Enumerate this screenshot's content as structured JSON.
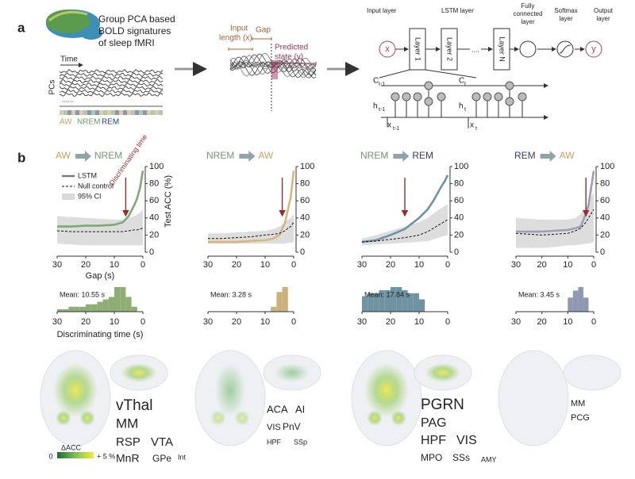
{
  "panel_a": {
    "label": "a",
    "title_lines": [
      "Group PCA based",
      "BOLD signatures",
      "of sleep fMRI"
    ],
    "time_label": "Time",
    "pcs_label": "PCs",
    "dots": "......",
    "states": [
      {
        "name": "AW",
        "color": "#c9a060"
      },
      {
        "name": "NREM",
        "color": "#6f9a6a"
      },
      {
        "name": "REM",
        "color": "#2f3f70"
      }
    ],
    "input_length": [
      "Input",
      "length (x)"
    ],
    "gap": "Gap",
    "predicted": [
      "Predicted",
      "state (y)"
    ],
    "layer_headers": {
      "input": "Input layer",
      "lstm": "LSTM layer",
      "fc": [
        "Fully",
        "connected",
        "layer"
      ],
      "softmax": [
        "Softmax",
        "layer"
      ],
      "output": [
        "Output",
        "layer"
      ]
    },
    "input_node": "x",
    "output_node": "y",
    "layers": [
      "Layer 1",
      "Layer 2",
      "Layer N"
    ],
    "ellipsis": "....",
    "cell_labels": [
      {
        "main": "C",
        "sub": "t-1"
      },
      {
        "main": "C",
        "sub": "t"
      },
      {
        "main": "h",
        "sub": "t-1"
      },
      {
        "main": "h",
        "sub": "t"
      },
      {
        "main": "x",
        "sub": "t-1"
      },
      {
        "main": "x",
        "sub": "t"
      }
    ]
  },
  "panel_b": {
    "label": "b"
  },
  "chart_data": [
    {
      "type": "line",
      "title_from": "AW",
      "title_to": "NREM",
      "from_color": "#c9a060",
      "to_color": "#6f9a6a",
      "xlabel": "Gap (s)",
      "ylabel": "Test ACC (%)",
      "annotation": "Discriminating time",
      "arrow_x": 6,
      "x": [
        30,
        25,
        20,
        15,
        10,
        7,
        5,
        3,
        2,
        1,
        0
      ],
      "xlim": [
        30,
        0
      ],
      "xticks": [
        30,
        20,
        10,
        0
      ],
      "ylim": [
        0,
        100
      ],
      "yticks": [
        0,
        20,
        40,
        60,
        80,
        100
      ],
      "series": [
        {
          "name": "LSTM",
          "style": "line",
          "color": "#7fa877",
          "values": [
            30,
            30,
            31,
            31,
            32,
            35,
            42,
            55,
            63,
            75,
            95
          ]
        },
        {
          "name": "Null control",
          "style": "dashed",
          "color": "#111111",
          "values": [
            25,
            24,
            24,
            24,
            24,
            24,
            25,
            26,
            26,
            27,
            28
          ]
        },
        {
          "name": "95% CI",
          "style": "band",
          "color": "#d9d9d9",
          "upper": [
            42,
            41,
            40,
            39,
            38,
            38,
            40,
            42,
            44,
            46,
            50
          ],
          "lower": [
            10,
            9,
            8,
            8,
            8,
            8,
            8,
            8,
            8,
            8,
            8
          ]
        }
      ]
    },
    {
      "type": "line",
      "title_from": "NREM",
      "title_to": "AW",
      "from_color": "#6f9a6a",
      "to_color": "#c9a060",
      "arrow_x": 4,
      "x": [
        30,
        25,
        20,
        15,
        10,
        7,
        5,
        3,
        2,
        1,
        0
      ],
      "xlim": [
        30,
        0
      ],
      "xticks": [
        30,
        20,
        10,
        0
      ],
      "ylim": [
        0,
        100
      ],
      "yticks": [
        0,
        20,
        40,
        60,
        80,
        100
      ],
      "series": [
        {
          "style": "line",
          "color": "#d6b77c",
          "values": [
            12,
            12,
            12,
            13,
            14,
            16,
            20,
            35,
            50,
            65,
            95
          ]
        },
        {
          "style": "dashed",
          "color": "#111111",
          "values": [
            16,
            16,
            17,
            18,
            20,
            21,
            22,
            25,
            28,
            30,
            35
          ]
        },
        {
          "style": "band",
          "color": "#d9d9d9",
          "upper": [
            22,
            22,
            23,
            24,
            25,
            27,
            30,
            35,
            38,
            40,
            45
          ],
          "lower": [
            10,
            10,
            10,
            10,
            10,
            10,
            10,
            10,
            11,
            11,
            12
          ]
        }
      ]
    },
    {
      "type": "line",
      "title_from": "NREM",
      "title_to": "REM",
      "from_color": "#6f9a6a",
      "to_color": "#2f3f70",
      "arrow_x": 15,
      "x": [
        30,
        25,
        20,
        15,
        10,
        7,
        5,
        3,
        2,
        1,
        0
      ],
      "xlim": [
        30,
        0
      ],
      "xticks": [
        30,
        20,
        10,
        0
      ],
      "ylim": [
        0,
        100
      ],
      "yticks": [
        0,
        20,
        40,
        60,
        80,
        100
      ],
      "series": [
        {
          "style": "line",
          "color": "#6f93a6",
          "values": [
            12,
            14,
            20,
            27,
            40,
            50,
            60,
            72,
            78,
            83,
            90
          ]
        },
        {
          "style": "dashed",
          "color": "#111111",
          "values": [
            12,
            13,
            15,
            17,
            20,
            24,
            28,
            32,
            34,
            36,
            38
          ]
        },
        {
          "style": "band",
          "color": "#d9d9d9",
          "upper": [
            16,
            20,
            25,
            30,
            35,
            40,
            45,
            50,
            52,
            54,
            56
          ],
          "lower": [
            8,
            9,
            10,
            11,
            12,
            13,
            15,
            17,
            18,
            19,
            20
          ]
        }
      ]
    },
    {
      "type": "line",
      "title_from": "REM",
      "title_to": "AW",
      "from_color": "#2f3f70",
      "to_color": "#c9a060",
      "arrow_x": 3,
      "x": [
        30,
        25,
        20,
        15,
        10,
        7,
        5,
        3,
        2,
        1,
        0
      ],
      "xlim": [
        30,
        0
      ],
      "xticks": [
        30,
        20,
        10,
        0
      ],
      "ylim": [
        0,
        100
      ],
      "yticks": [
        0,
        20,
        40,
        60,
        80,
        100
      ],
      "series": [
        {
          "style": "line",
          "color": "#9aa0b4",
          "values": [
            24,
            24,
            24,
            25,
            26,
            28,
            30,
            45,
            55,
            75,
            95
          ]
        },
        {
          "style": "dashed",
          "color": "#111111",
          "values": [
            22,
            21,
            20,
            21,
            22,
            25,
            28,
            35,
            40,
            45,
            50
          ]
        },
        {
          "style": "band",
          "color": "#d9d9d9",
          "upper": [
            40,
            39,
            38,
            38,
            38,
            40,
            45,
            52,
            58,
            64,
            70
          ],
          "lower": [
            5,
            5,
            5,
            6,
            8,
            8,
            9,
            10,
            10,
            11,
            12
          ]
        }
      ]
    },
    {
      "type": "histogram",
      "mean_label": "Mean: 10.55 s",
      "xlabel": "Discriminating time (s)",
      "color": "#8fae74",
      "bins": [
        0,
        2,
        4,
        6,
        8,
        10,
        12,
        14,
        16,
        18,
        20,
        22,
        24,
        26,
        28,
        30
      ],
      "values": [
        0,
        2,
        6,
        10,
        10,
        6,
        5,
        4,
        3,
        3,
        2,
        2,
        2,
        1,
        1
      ],
      "xlim": [
        30,
        0
      ],
      "xticks": [
        30,
        20,
        10,
        0
      ],
      "ylim": [
        0,
        10
      ]
    },
    {
      "type": "histogram",
      "mean_label": "Mean: 3.28 s",
      "color": "#cbb27a",
      "bins": [
        0,
        2,
        4,
        6,
        8
      ],
      "values": [
        0,
        10,
        8,
        2
      ],
      "xlim": [
        30,
        0
      ],
      "xticks": [
        30,
        20,
        10,
        0
      ],
      "ylim": [
        0,
        10
      ]
    },
    {
      "type": "histogram",
      "mean_label": "Mean: 17.84 s",
      "color": "#6f93a0",
      "bins": [
        8,
        10,
        12,
        14,
        16,
        18,
        20,
        22,
        24,
        26,
        28,
        30
      ],
      "values": [
        8,
        12,
        12,
        14,
        16,
        16,
        14,
        14,
        12,
        12,
        10
      ],
      "xlim": [
        30,
        0
      ],
      "xticks": [
        30,
        20,
        10,
        0
      ],
      "ylim": [
        0,
        16
      ]
    },
    {
      "type": "histogram",
      "mean_label": "Mean: 3.45 s",
      "color": "#8f98b0",
      "bins": [
        0,
        2,
        4,
        6,
        8,
        10
      ],
      "values": [
        0,
        8,
        14,
        12,
        8
      ],
      "xlim": [
        30,
        0
      ],
      "xticks": [
        30,
        20,
        10,
        0
      ],
      "ylim": [
        0,
        14
      ]
    }
  ],
  "brains": [
    {
      "regions": [
        "vThal",
        "MM",
        "RSP",
        "VTA",
        "MnR",
        "GPe",
        "Int"
      ]
    },
    {
      "regions": [
        "ACA",
        "AI",
        "VIS",
        "PnV",
        "HPF",
        "SSp"
      ]
    },
    {
      "regions": [
        "PGRN",
        "PAG",
        "HPF",
        "VIS",
        "MPO",
        "SSs",
        "AMY"
      ]
    },
    {
      "regions": [
        "MM",
        "PCG"
      ]
    }
  ],
  "colorbar": {
    "title": "ΔACC",
    "min_label": "0",
    "max_label": "+ 5 %"
  }
}
